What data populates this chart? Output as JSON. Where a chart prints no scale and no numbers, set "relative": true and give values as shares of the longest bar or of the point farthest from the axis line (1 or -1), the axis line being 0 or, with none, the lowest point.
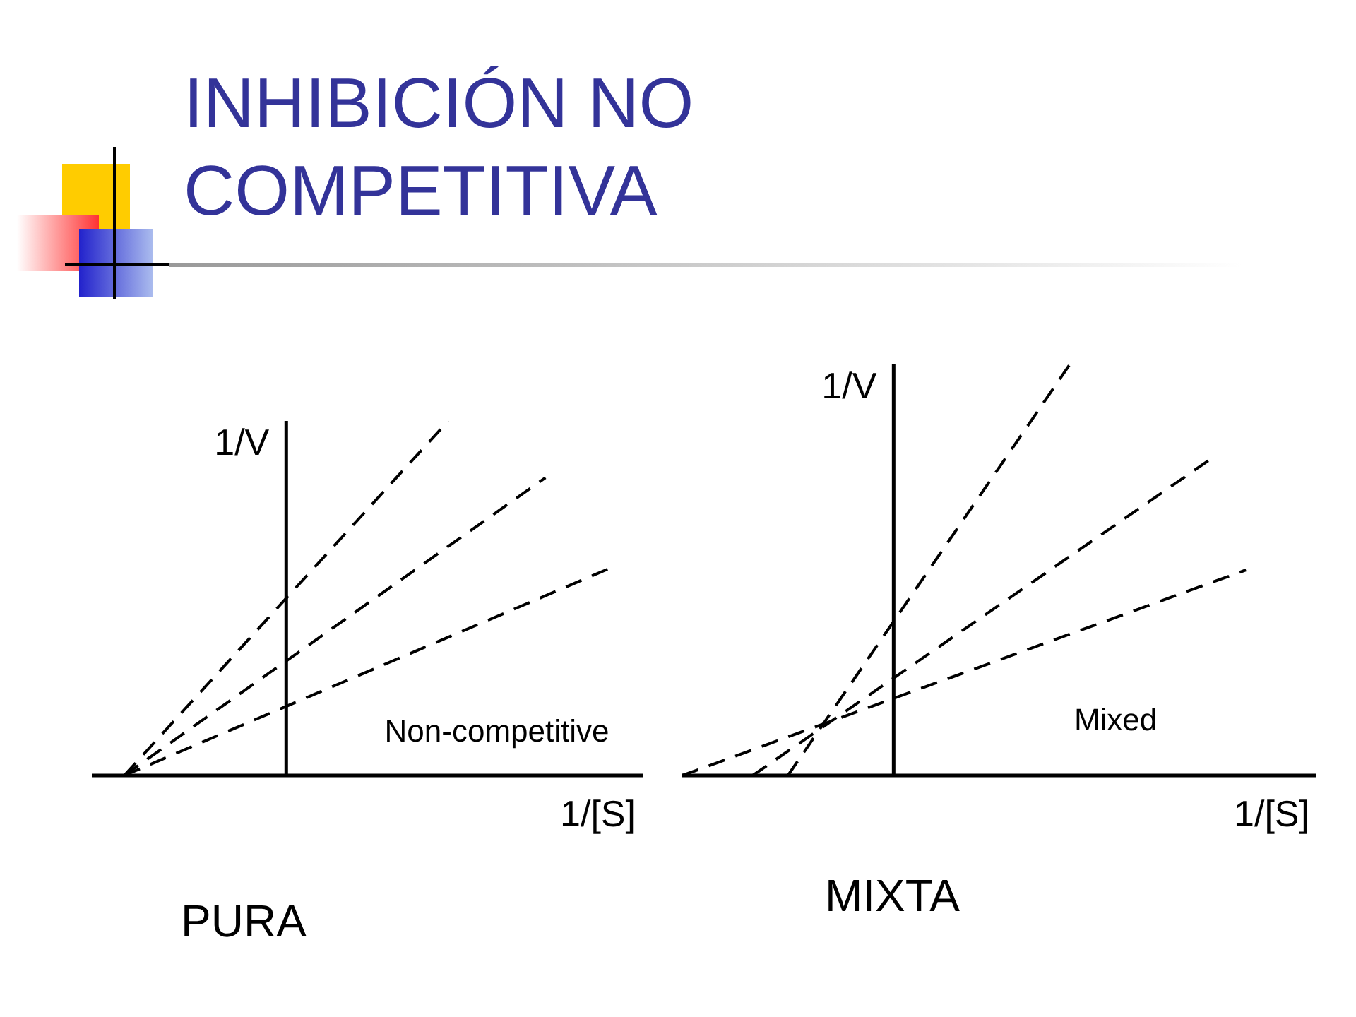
{
  "chart_data": [
    {
      "type": "line",
      "title": "INHIBICIÓN NO COMPETITIVA",
      "xlabel": "1/[S]",
      "ylabel": "1/V",
      "annotations": [
        "Non-competitive",
        "PURA"
      ],
      "categories": [
        null,
        null,
        null,
        null,
        null,
        null,
        null,
        null,
        null,
        null,
        null,
        null,
        null,
        null,
        null,
        null,
        null,
        null
      ],
      "series": [
        {
          "color": "#000000",
          "values": [
            null,
            0,
            null,
            null,
            null,
            null,
            null,
            null,
            null,
            null,
            null,
            1,
            null,
            null,
            null,
            null,
            null,
            null
          ]
        },
        {
          "color": "#000000",
          "values": [
            null,
            0,
            null,
            null,
            null,
            null,
            null,
            null,
            null,
            null,
            null,
            null,
            null,
            null,
            0.84,
            null,
            null,
            null
          ]
        },
        {
          "color": "#000000",
          "values": [
            null,
            0,
            null,
            null,
            null,
            null,
            null,
            null,
            null,
            null,
            null,
            null,
            null,
            null,
            null,
            null,
            0.585,
            null
          ]
        }
      ],
      "relative": true,
      "line_style": "dashed",
      "marker": "none",
      "legend": false,
      "grid": false
    },
    {
      "type": "line",
      "xlabel": "1/[S]",
      "ylabel": "1/V",
      "annotations": [
        "Mixed",
        "MIXTA"
      ],
      "categories": [
        null,
        null,
        null,
        null,
        null,
        null,
        null,
        null,
        null,
        null,
        null,
        null,
        null,
        null,
        null,
        null,
        null,
        null,
        null
      ],
      "series": [
        {
          "color": "#000000",
          "values": [
            null,
            null,
            null,
            0,
            null,
            null,
            null,
            null,
            null,
            null,
            null,
            1,
            null,
            null,
            null,
            null,
            null,
            null,
            null
          ]
        },
        {
          "color": "#000000",
          "values": [
            null,
            null,
            0,
            null,
            null,
            null,
            null,
            null,
            null,
            null,
            null,
            null,
            null,
            null,
            null,
            0.77,
            null,
            null,
            null
          ]
        },
        {
          "color": "#000000",
          "values": [
            0,
            null,
            null,
            null,
            null,
            null,
            null,
            null,
            null,
            null,
            null,
            null,
            null,
            null,
            null,
            null,
            0.5,
            null,
            null
          ]
        }
      ],
      "relative": true,
      "line_style": "dashed",
      "marker": "none",
      "legend": false,
      "grid": false
    }
  ]
}
